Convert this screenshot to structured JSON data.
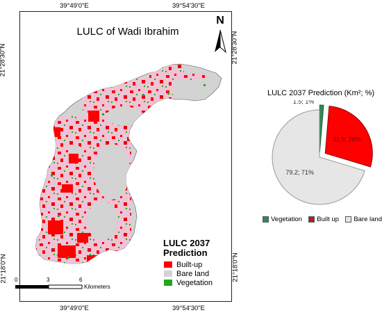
{
  "map": {
    "title": "LULC of Wadi Ibrahim",
    "north": "N",
    "coords": {
      "top_left": "39°49'0\"E",
      "top_right": "39°54'30\"E",
      "bottom_left": "39°49'0\"E",
      "bottom_right": "39°54'30\"E",
      "left_top": "21°28'30\"N",
      "left_bottom": "21°18'0\"N",
      "right_top": "21°28'30\"N",
      "right_bottom": "21°18'0\"N"
    },
    "legend": {
      "title_line1": "LULC 2037",
      "title_line2": "Prediction",
      "items": [
        {
          "label": "Built-up",
          "color": "#ff0000"
        },
        {
          "label": "Bare land",
          "color": "#d3d3d3"
        },
        {
          "label": "Vegetation",
          "color": "#1fa81f"
        }
      ]
    },
    "scale": {
      "ticks": [
        "0",
        "3",
        "6"
      ],
      "unit": "Kilometers"
    }
  },
  "chart_data": {
    "type": "pie",
    "title": "LULC 2037 Prediction (Km²; %)",
    "slices": [
      {
        "name": "Vegetation",
        "value": 1.5,
        "percent": 1,
        "label": "1.5; 1%",
        "color": "#2e8b57"
      },
      {
        "name": "Built up",
        "value": 31.9,
        "percent": 28,
        "label": "31.9; 28%",
        "color": "#ff0000"
      },
      {
        "name": "Bare land",
        "value": 79.2,
        "percent": 71,
        "label": "79.2; 71%",
        "color": "#e6e6e6"
      }
    ],
    "legend": [
      "Vegetation",
      "Built up",
      "Bare land"
    ],
    "legend_position": "bottom"
  }
}
